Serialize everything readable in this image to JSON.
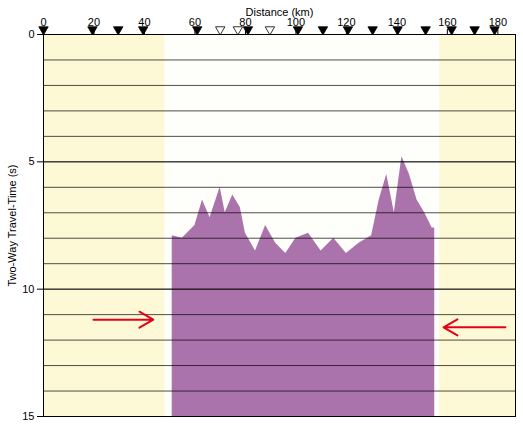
{
  "chart_data": {
    "type": "seismic_section",
    "xlabel": "Distance (km)",
    "ylabel": "Two-Way Travel-Time (s)",
    "xlim": [
      0,
      187
    ],
    "xticks": [
      0,
      20,
      40,
      60,
      80,
      100,
      120,
      140,
      160,
      180
    ],
    "ylim": [
      0,
      15
    ],
    "yticks": [
      0,
      5,
      10,
      15
    ],
    "grid": true,
    "grid_lines": [
      1,
      2,
      3,
      4,
      5,
      6,
      7,
      8,
      9,
      10,
      11,
      12,
      13,
      14
    ],
    "background_color": "#fdf9d6",
    "panel_xlim": [
      48,
      157
    ],
    "panel_color": "#fefefa",
    "data_top": {
      "x": [
        51,
        55,
        60,
        63,
        66,
        70,
        72,
        75,
        78,
        80,
        84,
        88,
        92,
        96,
        100,
        105,
        110,
        115,
        120,
        125,
        130,
        133,
        136,
        139,
        142,
        145,
        148,
        151,
        154,
        155
      ],
      "values": [
        7.9,
        8.0,
        7.5,
        6.5,
        7.2,
        6.0,
        7.0,
        6.3,
        6.8,
        7.8,
        8.5,
        7.5,
        8.2,
        8.6,
        8.0,
        7.8,
        8.5,
        8.0,
        8.6,
        8.2,
        7.9,
        6.5,
        5.5,
        7.0,
        4.8,
        5.5,
        6.5,
        7.0,
        7.6,
        7.6
      ],
      "color": "#9c5a9c"
    },
    "stations": {
      "filled": [
        0,
        19.4,
        29.6,
        39.5,
        60.9,
        81,
        100.8,
        110.7,
        120.6,
        130.4,
        140.3,
        151.4,
        161.7,
        170.8,
        178.7
      ],
      "open": [
        70,
        77,
        89.7
      ]
    },
    "arrows": [
      {
        "x1": 19.8,
        "x2": 43.5,
        "y": 11.2
      },
      {
        "x1": 183,
        "x2": 158.5,
        "y": 11.5
      }
    ],
    "arrow_color": "#e3001b"
  }
}
